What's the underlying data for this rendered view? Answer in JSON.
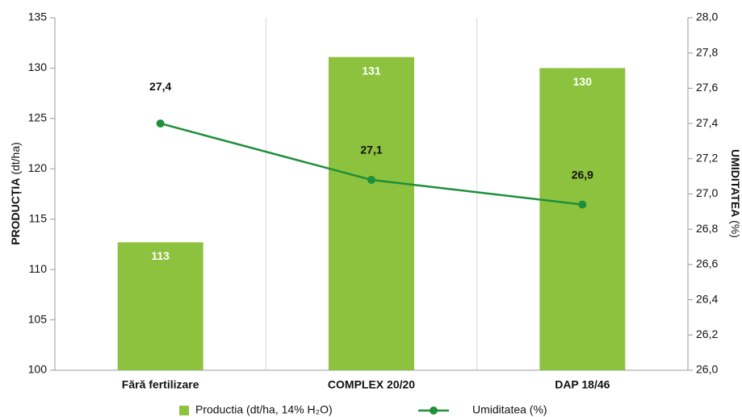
{
  "chart_data": {
    "type": "bar_line",
    "categories": [
      "Fără fertilizare",
      "COMPLEX 20/20",
      "DAP 18/46"
    ],
    "y_label": {
      "bold": "PRODUCȚIA",
      "normal": "(dt/ha)"
    },
    "y2_label": {
      "bold": "UMIDITATEA",
      "normal": "(%)"
    },
    "ylim": [
      100,
      135
    ],
    "yticks": [
      100,
      105,
      110,
      115,
      120,
      125,
      130,
      135
    ],
    "y2lim": [
      26,
      28
    ],
    "y2ticks": [
      {
        "value": 26,
        "label": "26,0"
      },
      {
        "value": 26.2,
        "label": "26,2"
      },
      {
        "value": 26.4,
        "label": "26,4"
      },
      {
        "value": 26.6,
        "label": "26,6"
      },
      {
        "value": 26.8,
        "label": "26,8"
      },
      {
        "value": 27,
        "label": "27,0"
      },
      {
        "value": 27.2,
        "label": "27,2"
      },
      {
        "value": 27.4,
        "label": "27,4"
      },
      {
        "value": 27.6,
        "label": "27,6"
      },
      {
        "value": 27.8,
        "label": "27,8"
      },
      {
        "value": 28,
        "label": "28,0"
      }
    ],
    "series": [
      {
        "name": "Productia (dt/ha, 14% H₂O)",
        "type": "bar",
        "color": "#8dc23f",
        "axis": "y",
        "values": [
          112.7,
          131.1,
          130.0
        ],
        "value_labels": [
          "113",
          "131",
          "130"
        ]
      },
      {
        "name": "Umiditatea (%)",
        "type": "line",
        "color": "#1f8f3a",
        "axis": "y2",
        "values": [
          27.4,
          27.08,
          26.94
        ],
        "value_labels": [
          "27,4",
          "27,1",
          "26,9"
        ]
      }
    ]
  }
}
